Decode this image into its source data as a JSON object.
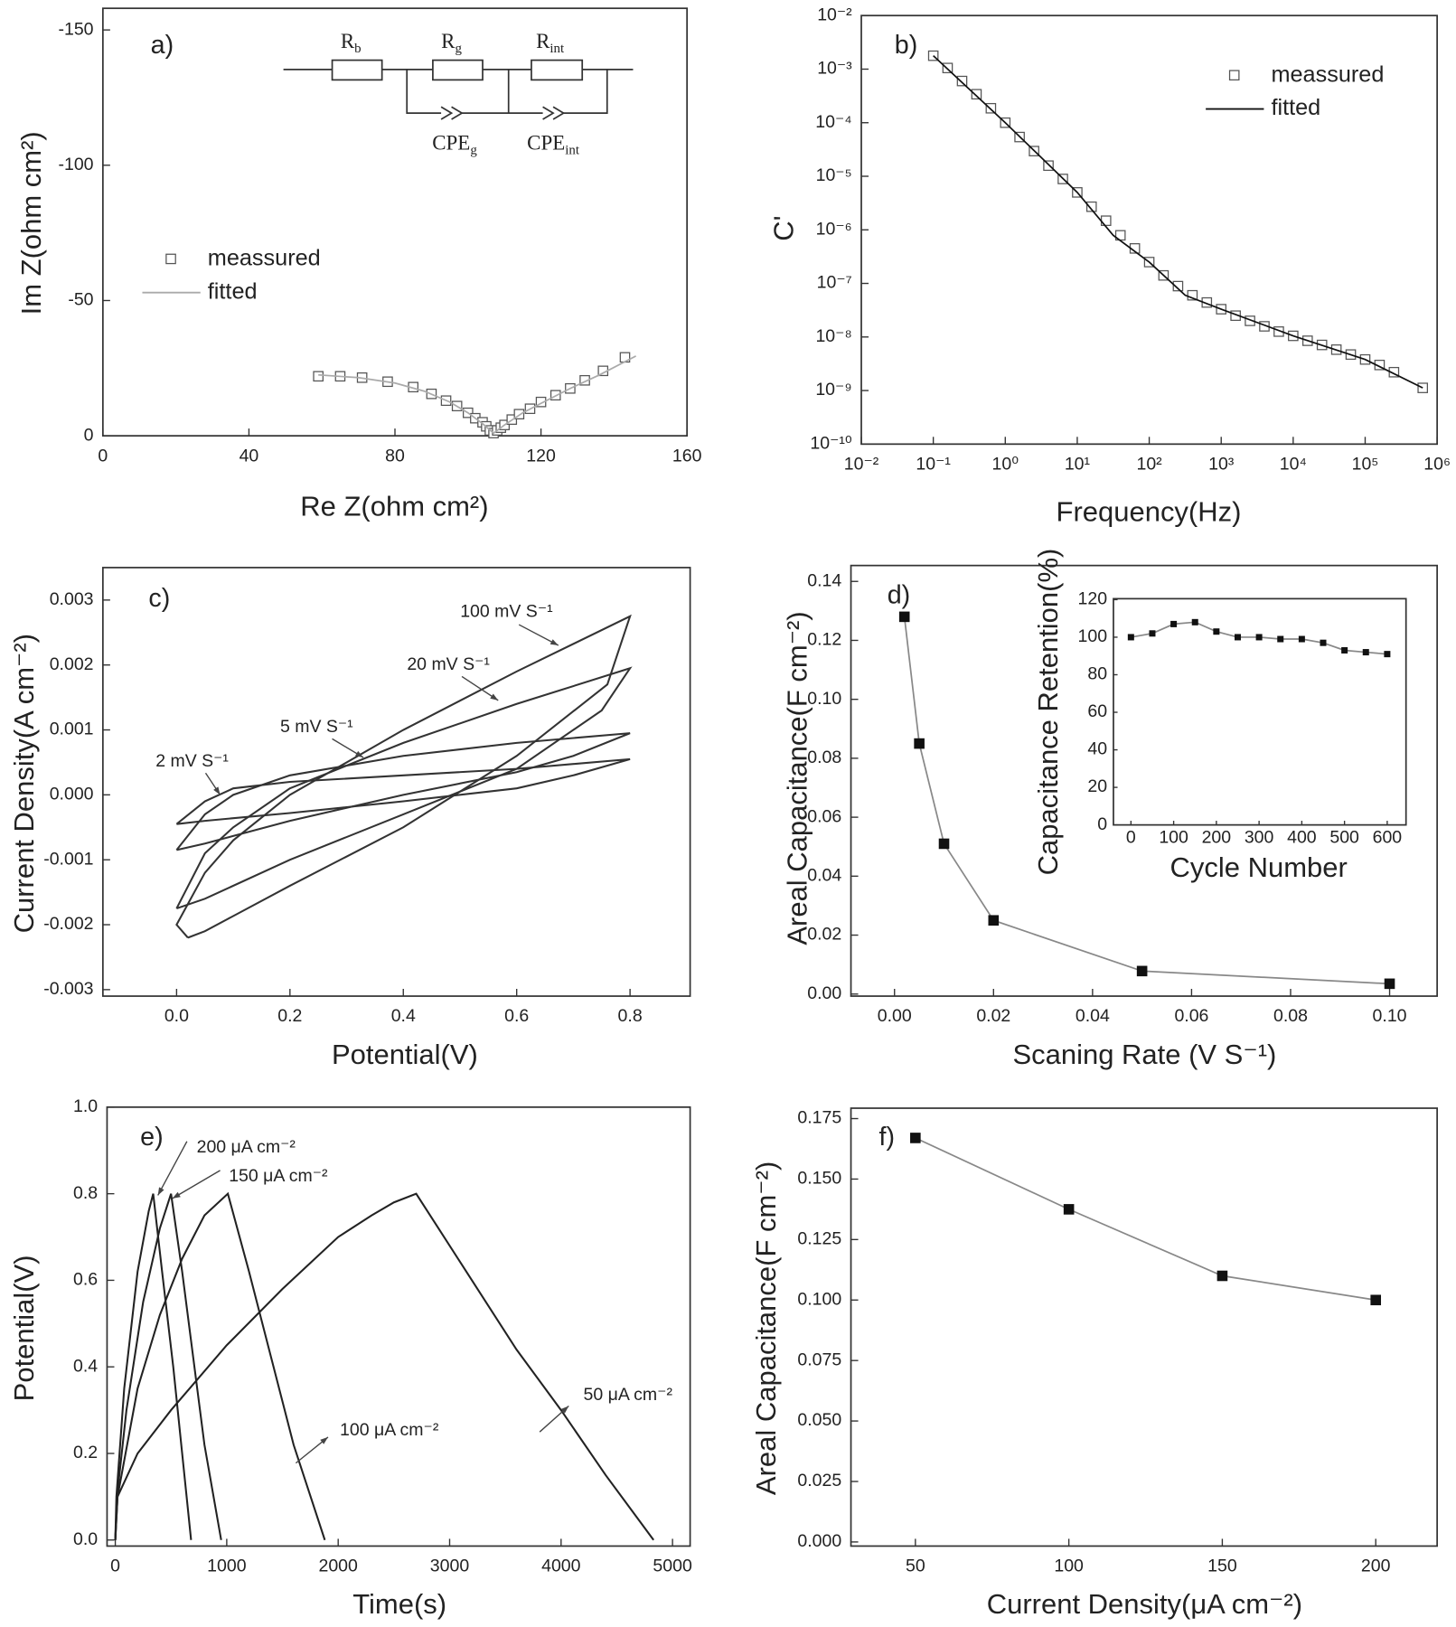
{
  "chart_data": [
    {
      "type": "scatter",
      "panel": "a)",
      "x_label": "Re Z(ohm cm²)",
      "y_label": "Im Z(ohm cm²)",
      "xlim": [
        0,
        160
      ],
      "xticks": [
        0,
        40,
        80,
        120,
        160
      ],
      "ylim": [
        0,
        -158
      ],
      "yticks": [
        -150,
        -100,
        -50,
        0
      ],
      "legend": true,
      "circuit_labels": [
        {
          "text": "R",
          "sub": "b"
        },
        {
          "text": "R",
          "sub": "g"
        },
        {
          "text": "R",
          "sub": "int"
        },
        {
          "text": "CPE",
          "sub": "g"
        },
        {
          "text": "CPE",
          "sub": "int"
        }
      ],
      "series": [
        {
          "name": "meassured",
          "marker": "open-square",
          "color": "#555555",
          "x": [
            59,
            65,
            71,
            78,
            85,
            90,
            94,
            97,
            100,
            102,
            104,
            105,
            106,
            107,
            108,
            109,
            110,
            112,
            114,
            117,
            120,
            124,
            128,
            132,
            137,
            143
          ],
          "values": [
            -22,
            -22,
            -21.5,
            -20,
            -18,
            -15.5,
            -13,
            -11,
            -8.5,
            -6.5,
            -5,
            -3.5,
            -2,
            -1,
            -2,
            -3,
            -4,
            -6,
            -8,
            -10,
            -12.5,
            -15,
            -17.5,
            -20.5,
            -24,
            -29
          ]
        },
        {
          "name": "fitted",
          "line": true,
          "color": "#aaaaaa",
          "x": [
            59,
            70,
            80,
            88,
            95,
            100,
            104,
            107,
            110,
            115,
            120,
            128,
            136,
            146
          ],
          "values": [
            -22.5,
            -21.5,
            -19.5,
            -16.5,
            -12.5,
            -8.5,
            -4.5,
            -1,
            -4,
            -8.5,
            -12,
            -17.5,
            -22.5,
            -29.5
          ]
        }
      ]
    },
    {
      "type": "scatter",
      "panel": "b)",
      "x_label": "Frequency(Hz)",
      "y_label": "C'",
      "xscale": "log",
      "yscale": "log",
      "xlim": [
        0.01,
        1000000
      ],
      "ylim": [
        1e-10,
        0.01
      ],
      "legend": true,
      "xticks": [
        {
          "value": 0.01,
          "label": "10⁻²"
        },
        {
          "value": 0.1,
          "label": "10⁻¹"
        },
        {
          "value": 1,
          "label": "10⁰"
        },
        {
          "value": 10,
          "label": "10¹"
        },
        {
          "value": 100,
          "label": "10²"
        },
        {
          "value": 1000,
          "label": "10³"
        },
        {
          "value": 10000,
          "label": "10⁴"
        },
        {
          "value": 100000,
          "label": "10⁵"
        },
        {
          "value": 1000000,
          "label": "10⁶"
        }
      ],
      "yticks": [
        {
          "value": 1e-10,
          "label": "10⁻¹⁰"
        },
        {
          "value": 1e-09,
          "label": "10⁻⁹"
        },
        {
          "value": 1e-08,
          "label": "10⁻⁸"
        },
        {
          "value": 1e-07,
          "label": "10⁻⁷"
        },
        {
          "value": 1e-06,
          "label": "10⁻⁶"
        },
        {
          "value": 1e-05,
          "label": "10⁻⁵"
        },
        {
          "value": 0.0001,
          "label": "10⁻⁴"
        },
        {
          "value": 0.001,
          "label": "10⁻³"
        },
        {
          "value": 0.01,
          "label": "10⁻²"
        }
      ],
      "series": [
        {
          "name": "meassured",
          "marker": "open-square",
          "color": "#555555",
          "x": [
            0.1,
            0.158,
            0.251,
            0.398,
            0.631,
            1,
            1.58,
            2.51,
            3.98,
            6.31,
            10,
            15.8,
            25.1,
            39.8,
            63.1,
            100,
            158,
            251,
            398,
            631,
            1000,
            1585,
            2512,
            3981,
            6310,
            10000,
            15849,
            25119,
            39811,
            63096,
            100000,
            158489,
            251189,
            630957
          ],
          "values": [
            0.00178,
            0.00105,
            0.0006,
            0.00034,
            0.000186,
            0.0001,
            5.4e-05,
            2.95e-05,
            1.58e-05,
            8.9e-06,
            5e-06,
            2.7e-06,
            1.48e-06,
            7.9e-07,
            4.5e-07,
            2.5e-07,
            1.41e-07,
            8.9e-08,
            6e-08,
            4.4e-08,
            3.3e-08,
            2.5e-08,
            2e-08,
            1.58e-08,
            1.26e-08,
            1.05e-08,
            8.5e-09,
            7.1e-09,
            5.8e-09,
            4.7e-09,
            3.8e-09,
            3e-09,
            2.2e-09,
            1.12e-09
          ]
        },
        {
          "name": "fitted",
          "line": true,
          "color": "#111111",
          "x": [
            0.1,
            1,
            10,
            31.6,
            100,
            316,
            1000,
            10000,
            100000,
            630957
          ],
          "values": [
            0.00178,
            0.0001,
            5e-06,
            7.9e-07,
            2.5e-07,
            6e-08,
            3.3e-08,
            1.05e-08,
            3.8e-09,
            1.12e-09
          ]
        }
      ]
    },
    {
      "type": "line",
      "panel": "c)",
      "x_label": "Potential(V)",
      "y_label": "Current Density(A cm⁻²)",
      "legend": false,
      "xlim": [
        -0.13,
        0.906
      ],
      "xticks": [
        {
          "value": 0,
          "label": "0.0"
        },
        0.2,
        0.4,
        0.6,
        0.8
      ],
      "ylim": [
        -0.0031,
        0.0035
      ],
      "yticks": [
        -0.003,
        -0.002,
        -0.001,
        {
          "value": 0,
          "label": "0.000"
        },
        0.001,
        0.002,
        0.003
      ],
      "series": [
        {
          "name": "100 mV S⁻¹",
          "color": "#333333",
          "x": [
            0.02,
            0,
            0.05,
            0.1,
            0.2,
            0.4,
            0.6,
            0.8,
            0.76,
            0.6,
            0.4,
            0.2,
            0.05,
            0.02
          ],
          "values": [
            -0.0022,
            -0.002,
            -0.0012,
            -0.0007,
            0,
            0.001,
            0.0019,
            0.00275,
            0.0017,
            0.0006,
            -0.0005,
            -0.0014,
            -0.0021,
            -0.0022
          ]
        },
        {
          "name": "20 mV S⁻¹",
          "color": "#333333",
          "x": [
            0,
            0.05,
            0.1,
            0.2,
            0.4,
            0.6,
            0.8,
            0.75,
            0.6,
            0.4,
            0.2,
            0.05,
            0
          ],
          "values": [
            -0.00175,
            -0.0009,
            -0.0005,
            0.0001,
            0.0008,
            0.0014,
            0.00195,
            0.0013,
            0.0004,
            -0.0003,
            -0.001,
            -0.0016,
            -0.00175
          ]
        },
        {
          "name": "5 mV S⁻¹",
          "color": "#333333",
          "x": [
            0,
            0.05,
            0.1,
            0.2,
            0.4,
            0.6,
            0.8,
            0.7,
            0.6,
            0.4,
            0.2,
            0.05,
            0
          ],
          "values": [
            -0.00085,
            -0.0003,
            0,
            0.0003,
            0.0006,
            0.0008,
            0.00095,
            0.0006,
            0.00035,
            0,
            -0.0004,
            -0.00075,
            -0.00085
          ]
        },
        {
          "name": "2 mV S⁻¹",
          "color": "#333333",
          "x": [
            0,
            0.05,
            0.1,
            0.2,
            0.4,
            0.6,
            0.8,
            0.7,
            0.6,
            0.4,
            0.2,
            0.05,
            0
          ],
          "values": [
            -0.00045,
            -0.0001,
            0.0001,
            0.0002,
            0.0003,
            0.0004,
            0.00055,
            0.0003,
            0.0001,
            -0.0001,
            -0.00028,
            -0.0004,
            -0.00045
          ]
        }
      ]
    },
    {
      "type": "scatter",
      "panel": "d)",
      "x_label": "Scaning Rate (V S⁻¹)",
      "y_label": "Areal Capacitance(F cm⁻²)",
      "legend": false,
      "xlim": [
        -0.0088,
        0.1096
      ],
      "xticks": [
        {
          "value": 0,
          "label": "0.00"
        },
        0.02,
        0.04,
        0.06,
        0.08,
        {
          "value": 0.1,
          "label": "0.10"
        }
      ],
      "ylim": [
        -0.0007,
        0.1454
      ],
      "yticks": [
        {
          "value": 0,
          "label": "0.00"
        },
        0.02,
        0.04,
        0.06,
        0.08,
        {
          "value": 0.1,
          "label": "0.10"
        },
        0.12,
        0.14
      ],
      "series": [
        {
          "marker": "filled-square",
          "line": true,
          "color": "#111111",
          "line_color": "#888888",
          "x": [
            0.002,
            0.005,
            0.01,
            0.02,
            0.05,
            0.1
          ],
          "values": [
            0.128,
            0.085,
            0.051,
            0.025,
            0.0078,
            0.0035
          ]
        }
      ],
      "inset": {
        "type": "scatter",
        "x_label": "Cycle Number",
        "y_label": "Capacitance Retention(%)",
        "xlim": [
          -41,
          644
        ],
        "xticks": [
          0,
          100,
          200,
          300,
          400,
          500,
          600
        ],
        "ylim": [
          0,
          120.5
        ],
        "yticks": [
          0,
          20,
          40,
          60,
          80,
          100,
          120
        ],
        "series": [
          {
            "marker": "filled-square",
            "line": true,
            "color": "#111111",
            "line_color": "#888888",
            "x": [
              0,
              50,
              100,
              150,
              200,
              250,
              300,
              350,
              400,
              450,
              500,
              550,
              600
            ],
            "values": [
              100,
              102,
              107,
              108,
              103,
              100,
              100,
              99,
              99,
              97,
              93,
              92,
              91
            ]
          }
        ]
      }
    },
    {
      "type": "line",
      "panel": "e)",
      "x_label": "Time(s)",
      "y_label": "Potential(V)",
      "legend": false,
      "xlim": [
        -74,
        5158
      ],
      "xticks": [
        0,
        1000,
        2000,
        3000,
        4000,
        5000
      ],
      "ylim": [
        -0.014,
        1.0
      ],
      "yticks": [
        {
          "value": 0,
          "label": "0.0"
        },
        0.2,
        0.4,
        0.6,
        0.8,
        {
          "value": 1,
          "label": "1.0"
        }
      ],
      "series": [
        {
          "name": "200 μA cm⁻²",
          "color": "#222222",
          "x": [
            0,
            10,
            80,
            200,
            300,
            340,
            420,
            520,
            600,
            680
          ],
          "values": [
            0,
            0.1,
            0.35,
            0.62,
            0.76,
            0.8,
            0.62,
            0.4,
            0.2,
            0
          ]
        },
        {
          "name": "150 μA cm⁻²",
          "color": "#222222",
          "x": [
            0,
            15,
            100,
            250,
            400,
            500,
            600,
            700,
            800,
            950
          ],
          "values": [
            0,
            0.1,
            0.3,
            0.55,
            0.72,
            0.8,
            0.62,
            0.42,
            0.22,
            0
          ]
        },
        {
          "name": "100 μA cm⁻²",
          "color": "#222222",
          "x": [
            0,
            20,
            200,
            400,
            600,
            800,
            1010,
            1200,
            1400,
            1600,
            1880
          ],
          "values": [
            0,
            0.1,
            0.35,
            0.52,
            0.65,
            0.75,
            0.8,
            0.62,
            0.42,
            0.22,
            0
          ]
        },
        {
          "name": "50 μA cm⁻²",
          "color": "#222222",
          "x": [
            0,
            20,
            200,
            500,
            1000,
            1500,
            2000,
            2300,
            2500,
            2700,
            2900,
            3200,
            3600,
            4000,
            4400,
            4830
          ],
          "values": [
            0,
            0.1,
            0.2,
            0.3,
            0.45,
            0.58,
            0.7,
            0.75,
            0.78,
            0.8,
            0.72,
            0.6,
            0.44,
            0.3,
            0.15,
            0
          ]
        }
      ]
    },
    {
      "type": "scatter",
      "panel": "f)",
      "x_label": "Current Density(μA cm⁻²)",
      "y_label": "Areal Capacitance(F cm⁻²)",
      "legend": false,
      "xlim": [
        29,
        220
      ],
      "xticks": [
        50,
        100,
        150,
        200
      ],
      "ylim": [
        -0.0017,
        0.1793
      ],
      "yticks": [
        {
          "value": 0,
          "label": "0.000"
        },
        0.025,
        {
          "value": 0.05,
          "label": "0.050"
        },
        0.075,
        {
          "value": 0.1,
          "label": "0.100"
        },
        0.125,
        {
          "value": 0.15,
          "label": "0.150"
        },
        0.175
      ],
      "series": [
        {
          "marker": "filled-square",
          "line": true,
          "color": "#111111",
          "line_color": "#888888",
          "x": [
            50,
            100,
            150,
            200
          ],
          "values": [
            0.167,
            0.1375,
            0.11,
            0.1
          ]
        }
      ]
    }
  ]
}
